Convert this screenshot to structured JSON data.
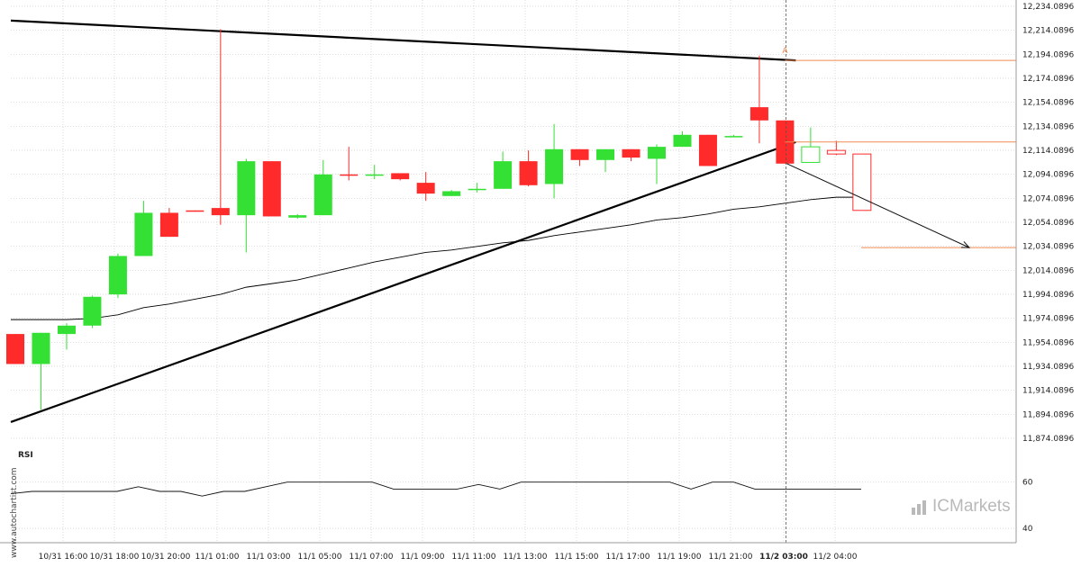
{
  "chart_data": {
    "type": "candlestick",
    "title": "",
    "price_axis": {
      "ticks": [
        "12,234.0896",
        "12,214.0896",
        "12,194.0896",
        "12,174.0896",
        "12,154.0896",
        "12,134.0896",
        "12,114.0896",
        "12,094.0896",
        "12,074.0896",
        "12,054.0896",
        "12,034.0896",
        "12,014.0896",
        "11,994.0896",
        "11,974.0896",
        "11,954.0896",
        "11,934.0896",
        "11,914.0896",
        "11,894.0896",
        "11,874.0896"
      ],
      "ylim": [
        11874.0896,
        12234.0896
      ]
    },
    "time_axis": {
      "labels": [
        "10/31 16:00",
        "10/31 18:00",
        "10/31 20:00",
        "11/1 01:00",
        "11/1 03:00",
        "11/1 05:00",
        "11/1 07:00",
        "11/1 09:00",
        "11/1 11:00",
        "11/1 13:00",
        "11/1 15:00",
        "11/1 17:00",
        "11/1 19:00",
        "11/1 21:00",
        "11/2 03:00",
        "11/2 04:00"
      ],
      "highlighted": "11/2 03:00"
    },
    "candles": [
      {
        "o": 11961,
        "h": 11961,
        "l": 11936,
        "c": 11936
      },
      {
        "o": 11936,
        "h": 11962,
        "l": 11898,
        "c": 11962
      },
      {
        "o": 11961,
        "h": 11970,
        "l": 11948,
        "c": 11968
      },
      {
        "o": 11968,
        "h": 11993,
        "l": 11966,
        "c": 11992
      },
      {
        "o": 11994,
        "h": 12028,
        "l": 11991,
        "c": 12026
      },
      {
        "o": 12026,
        "h": 12072,
        "l": 12026,
        "c": 12062
      },
      {
        "o": 12062,
        "h": 12066,
        "l": 12042,
        "c": 12042
      },
      {
        "o": 12064,
        "h": 12064,
        "l": 12063,
        "c": 12063
      },
      {
        "o": 12066,
        "h": 12215,
        "l": 12052,
        "c": 12060
      },
      {
        "o": 12060,
        "h": 12107,
        "l": 12029,
        "c": 12105
      },
      {
        "o": 12105,
        "h": 12105,
        "l": 12059,
        "c": 12059
      },
      {
        "o": 12058,
        "h": 12061,
        "l": 12057,
        "c": 12060
      },
      {
        "o": 12060,
        "h": 12106,
        "l": 12060,
        "c": 12094
      },
      {
        "o": 12094,
        "h": 12117,
        "l": 12089,
        "c": 12093
      },
      {
        "o": 12093,
        "h": 12102,
        "l": 12090,
        "c": 12094
      },
      {
        "o": 12095,
        "h": 12095,
        "l": 12089,
        "c": 12090
      },
      {
        "o": 12087,
        "h": 12096,
        "l": 12072,
        "c": 12078
      },
      {
        "o": 12076,
        "h": 12081,
        "l": 12076,
        "c": 12080
      },
      {
        "o": 12081,
        "h": 12087,
        "l": 12079,
        "c": 12082
      },
      {
        "o": 12082,
        "h": 12113,
        "l": 12082,
        "c": 12105
      },
      {
        "o": 12105,
        "h": 12114,
        "l": 12084,
        "c": 12085
      },
      {
        "o": 12086,
        "h": 12136,
        "l": 12074,
        "c": 12115
      },
      {
        "o": 12115,
        "h": 12115,
        "l": 12101,
        "c": 12106
      },
      {
        "o": 12106,
        "h": 12115,
        "l": 12096,
        "c": 12115
      },
      {
        "o": 12115,
        "h": 12115,
        "l": 12105,
        "c": 12108
      },
      {
        "o": 12107,
        "h": 12119,
        "l": 12086,
        "c": 12117
      },
      {
        "o": 12117,
        "h": 12130,
        "l": 12117,
        "c": 12127
      },
      {
        "o": 12127,
        "h": 12127,
        "l": 12101,
        "c": 12101
      },
      {
        "o": 12126,
        "h": 12127,
        "l": 12125,
        "c": 12126
      },
      {
        "o": 12150,
        "h": 12193,
        "l": 12120,
        "c": 12139
      },
      {
        "o": 12139,
        "h": 12139,
        "l": 12103,
        "c": 12103
      },
      {
        "o": 12104,
        "h": 12133,
        "l": 12104,
        "c": 12117
      },
      {
        "o": 12114,
        "h": 12122,
        "l": 12110,
        "c": 12111
      },
      {
        "o": 12111,
        "h": 12111,
        "l": 12064,
        "c": 12064
      }
    ],
    "moving_average": [
      11973,
      11973,
      11973,
      11974,
      11977,
      11983,
      11986,
      11990,
      11994,
      12000,
      12003,
      12006,
      12011,
      12016,
      12021,
      12025,
      12029,
      12031,
      12034,
      12037,
      12039,
      12043,
      12046,
      12049,
      12052,
      12056,
      12058,
      12061,
      12065,
      12067,
      12070,
      12073,
      12075,
      12075
    ],
    "resistance_line": {
      "from": [
        0,
        12222
      ],
      "to": [
        30,
        12189
      ]
    },
    "support_line": {
      "from": [
        0,
        11889
      ],
      "to": [
        30,
        12121
      ]
    },
    "pattern_marker": {
      "label": "A",
      "index": 30,
      "price": 12193
    },
    "levels": [
      {
        "price": 12189,
        "from_index": 30,
        "to_index": 41
      },
      {
        "price": 12121,
        "from_index": 30,
        "to_index": 41
      },
      {
        "price": 12033,
        "from_index": 34,
        "to_index": 41
      }
    ],
    "forecast_arrow": {
      "from": [
        30,
        12103
      ],
      "to": [
        38,
        12033
      ]
    },
    "vertical_marker_index": 30,
    "rsi": {
      "label": "RSI",
      "ticks": [
        "60",
        "40"
      ],
      "values": [
        55,
        56,
        56,
        56,
        56,
        56,
        58,
        56,
        56,
        54,
        56,
        56,
        58,
        60,
        60,
        60,
        60,
        60,
        57,
        57,
        57,
        57,
        59,
        57,
        60,
        60,
        60,
        60,
        60,
        60,
        60,
        60,
        57,
        60,
        60,
        57,
        57,
        57,
        57,
        57,
        57
      ],
      "ylim": [
        35,
        70
      ]
    },
    "colors": {
      "up": "#33e033",
      "down": "#ff2a2a",
      "level": "#f08a50",
      "trend": "#000000",
      "ma": "#000000",
      "grid": "#cccccc"
    }
  },
  "watermark": "www.autochartist.com",
  "brand": {
    "name": "ICMarkets",
    "prefix": "IC",
    "suffix": "Markets"
  }
}
